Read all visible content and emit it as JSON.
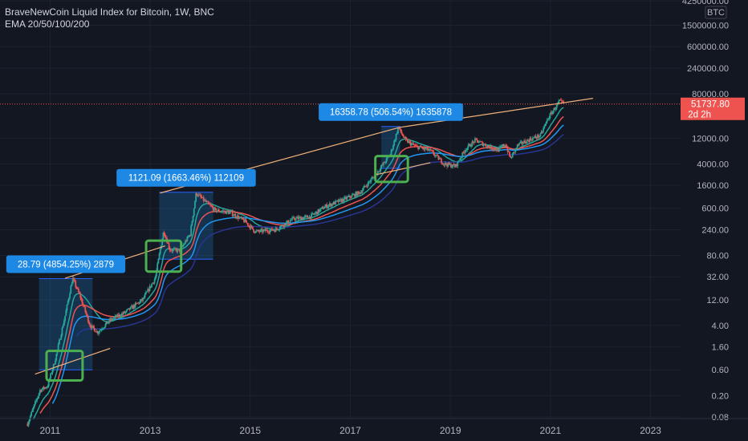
{
  "header": {
    "title": "BraveNewCoin Liquid Index for Bitcoin, 1W, BNC",
    "indicator": "EMA 20/50/100/200"
  },
  "currency_label": "BTC",
  "current_price": {
    "value": "51737.80",
    "countdown": "2d 2h",
    "color": "#ef5350"
  },
  "colors": {
    "background": "#131722",
    "up_candle": "#26a69a",
    "down_candle": "#ef5350",
    "trendline": "#f0b27a",
    "callout_bg": "#1e88e5",
    "highlight_box": "#4caf50",
    "ema20": "#26a69a",
    "ema50": "#ef5350",
    "ema100": "#2196f3",
    "ema200": "#283593"
  },
  "chart_data": {
    "type": "candlestick",
    "title": "BraveNewCoin Liquid Index for Bitcoin, 1W, BNC",
    "y_scale": "log",
    "ylim": [
      0.06,
      4250000
    ],
    "xlim": [
      2010.0,
      2023.6
    ],
    "y_ticks": [
      "4250000.00",
      "1500000.00",
      "600000.00",
      "240000.00",
      "80000.00",
      "12000.00",
      "4000.00",
      "1600.00",
      "600.00",
      "240.00",
      "80.00",
      "32.00",
      "12.00",
      "4.00",
      "1.60",
      "0.60",
      "0.20",
      "0.08"
    ],
    "x_ticks": [
      "2011",
      "2013",
      "2015",
      "2017",
      "2019",
      "2021",
      "2023"
    ],
    "price_path": [
      {
        "t": 2010.55,
        "v": 0.06
      },
      {
        "t": 2010.8,
        "v": 0.25
      },
      {
        "t": 2010.95,
        "v": 0.3
      },
      {
        "t": 2011.1,
        "v": 0.9
      },
      {
        "t": 2011.3,
        "v": 6
      },
      {
        "t": 2011.45,
        "v": 30
      },
      {
        "t": 2011.6,
        "v": 14
      },
      {
        "t": 2011.8,
        "v": 4
      },
      {
        "t": 2011.95,
        "v": 3
      },
      {
        "t": 2012.2,
        "v": 5
      },
      {
        "t": 2012.5,
        "v": 7
      },
      {
        "t": 2012.85,
        "v": 12
      },
      {
        "t": 2013.1,
        "v": 30
      },
      {
        "t": 2013.27,
        "v": 230
      },
      {
        "t": 2013.4,
        "v": 100
      },
      {
        "t": 2013.6,
        "v": 100
      },
      {
        "t": 2013.8,
        "v": 200
      },
      {
        "t": 2013.92,
        "v": 1150
      },
      {
        "t": 2014.1,
        "v": 800
      },
      {
        "t": 2014.3,
        "v": 550
      },
      {
        "t": 2014.6,
        "v": 500
      },
      {
        "t": 2014.9,
        "v": 340
      },
      {
        "t": 2015.1,
        "v": 220
      },
      {
        "t": 2015.5,
        "v": 240
      },
      {
        "t": 2015.85,
        "v": 380
      },
      {
        "t": 2016.2,
        "v": 420
      },
      {
        "t": 2016.5,
        "v": 650
      },
      {
        "t": 2016.9,
        "v": 900
      },
      {
        "t": 2017.2,
        "v": 1200
      },
      {
        "t": 2017.5,
        "v": 2500
      },
      {
        "t": 2017.8,
        "v": 6000
      },
      {
        "t": 2017.96,
        "v": 19000
      },
      {
        "t": 2018.1,
        "v": 11000
      },
      {
        "t": 2018.3,
        "v": 8500
      },
      {
        "t": 2018.6,
        "v": 7000
      },
      {
        "t": 2018.88,
        "v": 4000
      },
      {
        "t": 2019.1,
        "v": 3600
      },
      {
        "t": 2019.3,
        "v": 7500
      },
      {
        "t": 2019.5,
        "v": 11000
      },
      {
        "t": 2019.75,
        "v": 8500
      },
      {
        "t": 2019.95,
        "v": 7200
      },
      {
        "t": 2020.1,
        "v": 9500
      },
      {
        "t": 2020.2,
        "v": 5000
      },
      {
        "t": 2020.35,
        "v": 9000
      },
      {
        "t": 2020.6,
        "v": 11500
      },
      {
        "t": 2020.8,
        "v": 13500
      },
      {
        "t": 2020.95,
        "v": 28000
      },
      {
        "t": 2021.1,
        "v": 45000
      },
      {
        "t": 2021.18,
        "v": 58000
      },
      {
        "t": 2021.28,
        "v": 51737.8
      }
    ],
    "trendlines": [
      {
        "from": {
          "t": 2010.7,
          "v": 0.5
        },
        "to": {
          "t": 2012.2,
          "v": 1.5
        }
      },
      {
        "from": {
          "t": 2011.3,
          "v": 30
        },
        "to": {
          "t": 2013.3,
          "v": 120
        }
      },
      {
        "from": {
          "t": 2013.2,
          "v": 1150
        },
        "to": {
          "t": 2017.98,
          "v": 19000
        }
      },
      {
        "from": {
          "t": 2017.98,
          "v": 19000
        },
        "to": {
          "t": 2021.85,
          "v": 66000
        }
      },
      {
        "from": {
          "t": 2017.5,
          "v": 2500
        },
        "to": {
          "t": 2018.6,
          "v": 4200
        }
      }
    ],
    "measure_boxes": [
      {
        "t1": 2010.78,
        "t2": 2011.85,
        "v1": 0.6,
        "v2": 29.6,
        "label": "28.79 (4854.25%) 2879"
      },
      {
        "t1": 2013.18,
        "t2": 2014.26,
        "v1": 68,
        "v2": 1190,
        "label": "1121.09 (1663.46%) 112109"
      },
      {
        "t1": 2017.62,
        "t2": 2018.0,
        "v1": 3300,
        "v2": 19800,
        "label": "16358.78 (506.54%) 1635878"
      }
    ],
    "highlight_zones": [
      {
        "t1": 2010.93,
        "t2": 2011.65,
        "v1": 0.38,
        "v2": 1.35
      },
      {
        "t1": 2012.92,
        "t2": 2013.62,
        "v1": 40,
        "v2": 150
      },
      {
        "t1": 2017.5,
        "t2": 2018.15,
        "v1": 1850,
        "v2": 5600
      }
    ]
  }
}
